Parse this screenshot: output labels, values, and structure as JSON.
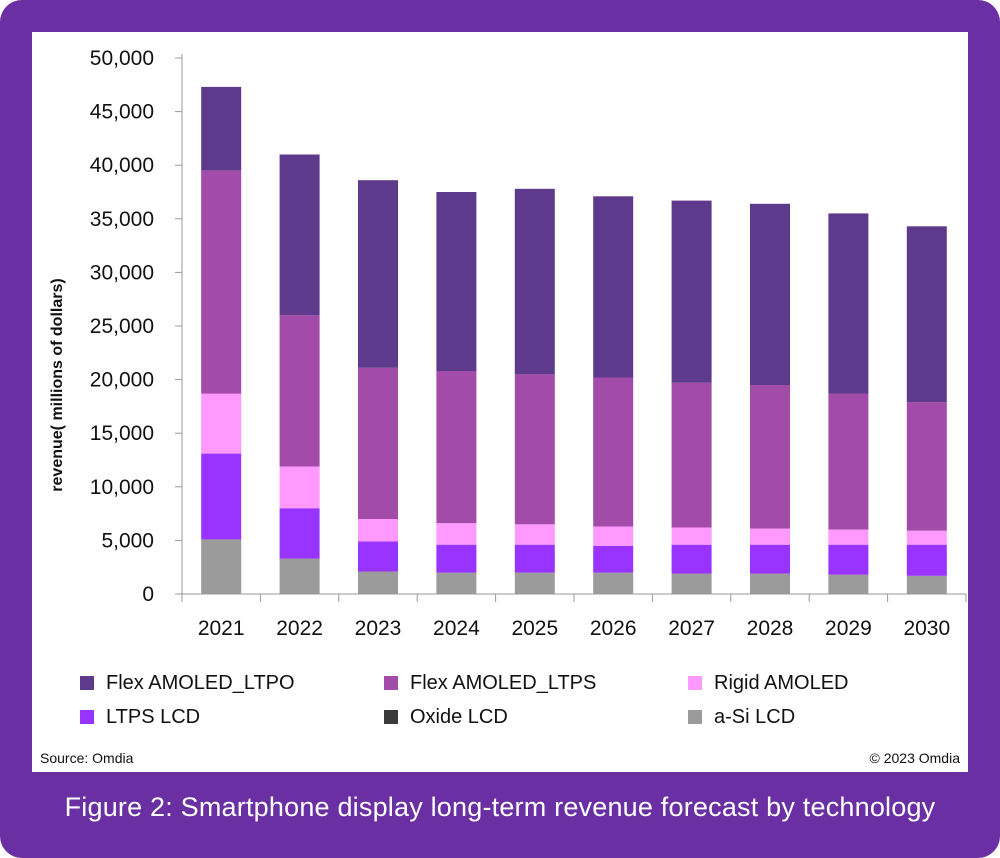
{
  "caption": "Figure 2: Smartphone display long-term revenue forecast by technology",
  "source": "Source: Omdia",
  "copyright": "© 2023 Omdia",
  "colors": {
    "frame": "#6a2fa2",
    "panel": "#ffffff"
  },
  "chart_data": {
    "type": "bar",
    "stacked": true,
    "title": "",
    "xlabel": "",
    "ylabel": "revenue( millions of dollars)",
    "ylim": [
      0,
      50000
    ],
    "yticks": [
      0,
      5000,
      10000,
      15000,
      20000,
      25000,
      30000,
      35000,
      40000,
      45000,
      50000
    ],
    "ytick_labels": [
      "0",
      "5,000",
      "10,000",
      "15,000",
      "20,000",
      "25,000",
      "30,000",
      "35,000",
      "40,000",
      "45,000",
      "50,000"
    ],
    "categories": [
      "2021",
      "2022",
      "2023",
      "2024",
      "2025",
      "2026",
      "2027",
      "2028",
      "2029",
      "2030"
    ],
    "grid": false,
    "legend_position": "bottom",
    "series": [
      {
        "name": "a-Si LCD",
        "color": "#9b9b9b",
        "values": [
          5100,
          3300,
          2100,
          2000,
          2000,
          2000,
          1900,
          1900,
          1800,
          1700
        ]
      },
      {
        "name": "Oxide LCD",
        "color": "#3a3a3a",
        "values": [
          0,
          0,
          0,
          0,
          0,
          0,
          0,
          0,
          0,
          0
        ]
      },
      {
        "name": "LTPS LCD",
        "color": "#9933ff",
        "values": [
          8000,
          4700,
          2800,
          2600,
          2600,
          2500,
          2700,
          2700,
          2800,
          2900
        ]
      },
      {
        "name": "Rigid AMOLED",
        "color": "#ff99ff",
        "values": [
          5600,
          3900,
          2100,
          2000,
          1900,
          1800,
          1600,
          1500,
          1400,
          1300
        ]
      },
      {
        "name": "Flex AMOLED_LTPS",
        "color": "#a34ba8",
        "values": [
          20800,
          14100,
          14100,
          14200,
          14000,
          13900,
          13500,
          13400,
          12700,
          12000
        ]
      },
      {
        "name": "Flex AMOLED_LTPO",
        "color": "#5e3a8c",
        "values": [
          7800,
          15000,
          17500,
          16700,
          17300,
          16900,
          17000,
          16900,
          16800,
          16400
        ]
      }
    ],
    "legend_order": [
      "Flex AMOLED_LTPO",
      "Flex AMOLED_LTPS",
      "Rigid AMOLED",
      "LTPS LCD",
      "Oxide LCD",
      "a-Si LCD"
    ]
  }
}
